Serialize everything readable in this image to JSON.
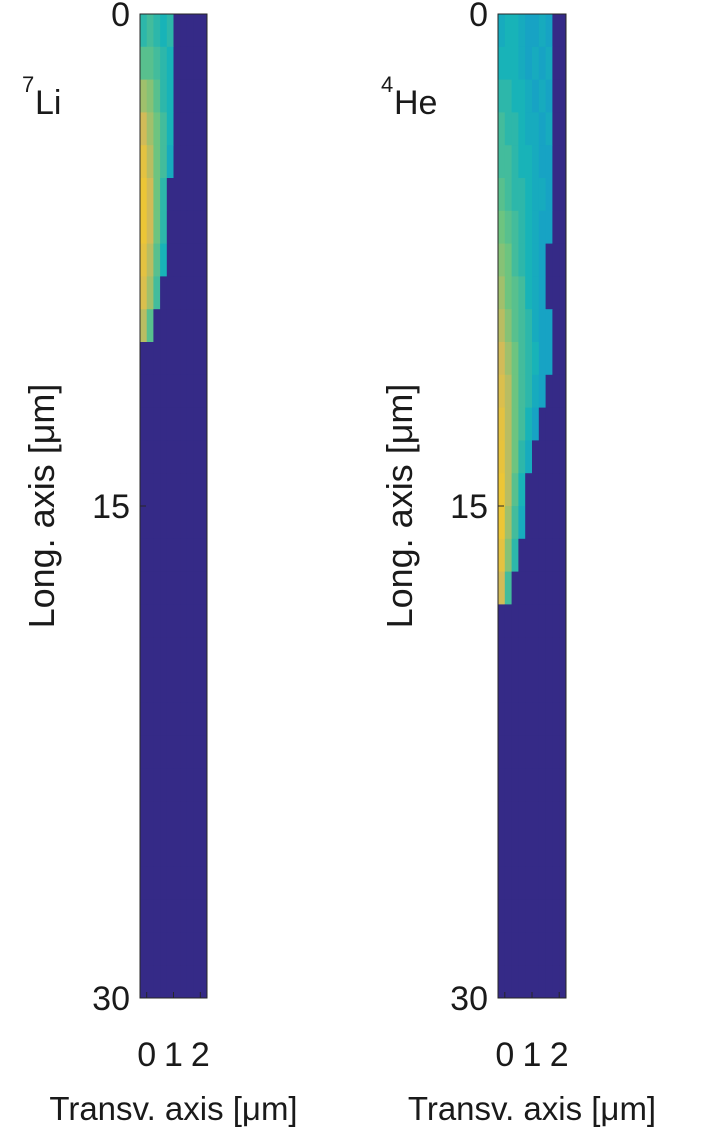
{
  "chart_data": [
    {
      "type": "heatmap",
      "title_sup": "7",
      "title": "Li",
      "xlabel": "Transv. axis [μm]",
      "ylabel": "Long. axis [μm]",
      "xlim": [
        -0.25,
        2.25
      ],
      "ylim": [
        0,
        30
      ],
      "xticks": [
        0,
        1,
        2
      ],
      "yticks": [
        0,
        15,
        30
      ],
      "y_reversed": true,
      "clim": [
        0,
        1
      ],
      "colormap": [
        "#352a87",
        "#1592d0",
        "#18b3b8",
        "#6dc480",
        "#d2bb58",
        "#f5c92a"
      ],
      "x": [
        -0.125,
        0.125,
        0.375,
        0.625,
        0.875,
        1.125,
        1.375,
        1.625,
        1.875,
        2.125
      ],
      "y": [
        0.5,
        1.5,
        2.5,
        3.5,
        4.5,
        5.5,
        6.5,
        7.5,
        8.5,
        9.5,
        10.5,
        11.5,
        12.5,
        13.5,
        14.5,
        15.5,
        16.5,
        17.5,
        18.5,
        19.5,
        20.5,
        21.5,
        22.5,
        23.5,
        24.5,
        25.5,
        26.5,
        27.5,
        28.5,
        29.5
      ],
      "z": [
        [
          0.45,
          0.5,
          0.45,
          0.4,
          0.45,
          0,
          0,
          0,
          0,
          0
        ],
        [
          0.55,
          0.55,
          0.5,
          0.45,
          0.4,
          0,
          0,
          0,
          0,
          0
        ],
        [
          0.7,
          0.65,
          0.55,
          0.45,
          0.4,
          0,
          0,
          0,
          0,
          0
        ],
        [
          0.8,
          0.7,
          0.6,
          0.5,
          0.4,
          0,
          0,
          0,
          0,
          0
        ],
        [
          0.9,
          0.75,
          0.6,
          0.5,
          0.35,
          0,
          0,
          0,
          0,
          0
        ],
        [
          0.95,
          0.8,
          0.6,
          0.45,
          0,
          0,
          0,
          0,
          0,
          0
        ],
        [
          0.95,
          0.8,
          0.6,
          0.45,
          0,
          0,
          0,
          0,
          0,
          0
        ],
        [
          0.9,
          0.75,
          0.55,
          0.4,
          0,
          0,
          0,
          0,
          0,
          0
        ],
        [
          0.85,
          0.7,
          0.5,
          0,
          0,
          0,
          0,
          0,
          0,
          0
        ],
        [
          0.75,
          0.55,
          0,
          0,
          0,
          0,
          0,
          0,
          0,
          0
        ],
        [
          0,
          0,
          0,
          0,
          0,
          0,
          0,
          0,
          0,
          0
        ],
        [
          0,
          0,
          0,
          0,
          0,
          0,
          0,
          0,
          0,
          0
        ],
        [
          0,
          0,
          0,
          0,
          0,
          0,
          0,
          0,
          0,
          0
        ],
        [
          0,
          0,
          0,
          0,
          0,
          0,
          0,
          0,
          0,
          0
        ],
        [
          0,
          0,
          0,
          0,
          0,
          0,
          0,
          0,
          0,
          0
        ],
        [
          0,
          0,
          0,
          0,
          0,
          0,
          0,
          0,
          0,
          0
        ],
        [
          0,
          0,
          0,
          0,
          0,
          0,
          0,
          0,
          0,
          0
        ],
        [
          0,
          0,
          0,
          0,
          0,
          0,
          0,
          0,
          0,
          0
        ],
        [
          0,
          0,
          0,
          0,
          0,
          0,
          0,
          0,
          0,
          0
        ],
        [
          0,
          0,
          0,
          0,
          0,
          0,
          0,
          0,
          0,
          0
        ],
        [
          0,
          0,
          0,
          0,
          0,
          0,
          0,
          0,
          0,
          0
        ],
        [
          0,
          0,
          0,
          0,
          0,
          0,
          0,
          0,
          0,
          0
        ],
        [
          0,
          0,
          0,
          0,
          0,
          0,
          0,
          0,
          0,
          0
        ],
        [
          0,
          0,
          0,
          0,
          0,
          0,
          0,
          0,
          0,
          0
        ],
        [
          0,
          0,
          0,
          0,
          0,
          0,
          0,
          0,
          0,
          0
        ],
        [
          0,
          0,
          0,
          0,
          0,
          0,
          0,
          0,
          0,
          0
        ],
        [
          0,
          0,
          0,
          0,
          0,
          0,
          0,
          0,
          0,
          0
        ],
        [
          0,
          0,
          0,
          0,
          0,
          0,
          0,
          0,
          0,
          0
        ],
        [
          0,
          0,
          0,
          0,
          0,
          0,
          0,
          0,
          0,
          0
        ],
        [
          0,
          0,
          0,
          0,
          0,
          0,
          0,
          0,
          0,
          0
        ]
      ]
    },
    {
      "type": "heatmap",
      "title_sup": "4",
      "title": "He",
      "xlabel": "Transv. axis [μm]",
      "ylabel": "Long. axis [μm]",
      "xlim": [
        -0.25,
        2.25
      ],
      "ylim": [
        0,
        30
      ],
      "xticks": [
        0,
        1,
        2
      ],
      "yticks": [
        0,
        15,
        30
      ],
      "y_reversed": true,
      "clim": [
        0,
        1
      ],
      "colormap": [
        "#352a87",
        "#1592d0",
        "#18b3b8",
        "#6dc480",
        "#d2bb58",
        "#f5c92a"
      ],
      "x": [
        -0.125,
        0.125,
        0.375,
        0.625,
        0.875,
        1.125,
        1.375,
        1.625,
        1.875,
        2.125
      ],
      "y": [
        0.5,
        1.5,
        2.5,
        3.5,
        4.5,
        5.5,
        6.5,
        7.5,
        8.5,
        9.5,
        10.5,
        11.5,
        12.5,
        13.5,
        14.5,
        15.5,
        16.5,
        17.5,
        18.5,
        19.5,
        20.5,
        21.5,
        22.5,
        23.5,
        24.5,
        25.5,
        26.5,
        27.5,
        28.5,
        29.5
      ],
      "z": [
        [
          0.35,
          0.4,
          0.4,
          0.35,
          0.3,
          0.3,
          0.35,
          0.3,
          0,
          0
        ],
        [
          0.4,
          0.4,
          0.4,
          0.35,
          0.3,
          0.35,
          0.3,
          0.35,
          0,
          0
        ],
        [
          0.45,
          0.45,
          0.4,
          0.4,
          0.35,
          0.3,
          0.35,
          0.3,
          0,
          0
        ],
        [
          0.5,
          0.45,
          0.45,
          0.4,
          0.35,
          0.35,
          0.3,
          0.35,
          0,
          0
        ],
        [
          0.5,
          0.5,
          0.45,
          0.4,
          0.4,
          0.35,
          0.3,
          0.3,
          0,
          0
        ],
        [
          0.55,
          0.5,
          0.45,
          0.45,
          0.4,
          0.35,
          0.35,
          0.3,
          0,
          0
        ],
        [
          0.6,
          0.55,
          0.5,
          0.45,
          0.4,
          0.35,
          0.3,
          0.3,
          0,
          0
        ],
        [
          0.65,
          0.6,
          0.5,
          0.45,
          0.4,
          0.35,
          0.3,
          0,
          0,
          0
        ],
        [
          0.7,
          0.6,
          0.55,
          0.5,
          0.4,
          0.35,
          0.3,
          0,
          0,
          0
        ],
        [
          0.75,
          0.65,
          0.55,
          0.5,
          0.45,
          0.35,
          0.3,
          0.3,
          0,
          0
        ],
        [
          0.8,
          0.7,
          0.6,
          0.5,
          0.45,
          0.4,
          0.3,
          0.3,
          0,
          0
        ],
        [
          0.85,
          0.75,
          0.6,
          0.5,
          0.45,
          0.35,
          0.3,
          0,
          0,
          0
        ],
        [
          0.9,
          0.75,
          0.6,
          0.5,
          0.4,
          0.3,
          0,
          0,
          0,
          0
        ],
        [
          0.92,
          0.75,
          0.6,
          0.45,
          0.35,
          0,
          0,
          0,
          0,
          0
        ],
        [
          0.95,
          0.75,
          0.55,
          0.4,
          0,
          0,
          0,
          0,
          0,
          0
        ],
        [
          0.95,
          0.7,
          0.5,
          0.35,
          0,
          0,
          0,
          0,
          0,
          0
        ],
        [
          0.9,
          0.65,
          0.45,
          0,
          0,
          0,
          0,
          0,
          0,
          0
        ],
        [
          0.8,
          0.5,
          0,
          0,
          0,
          0,
          0,
          0,
          0,
          0
        ],
        [
          0,
          0,
          0,
          0,
          0,
          0,
          0,
          0,
          0,
          0
        ],
        [
          0,
          0,
          0,
          0,
          0,
          0,
          0,
          0,
          0,
          0
        ],
        [
          0,
          0,
          0,
          0,
          0,
          0,
          0,
          0,
          0,
          0
        ],
        [
          0,
          0,
          0,
          0,
          0,
          0,
          0,
          0,
          0,
          0
        ],
        [
          0,
          0,
          0,
          0,
          0,
          0,
          0,
          0,
          0,
          0
        ],
        [
          0,
          0,
          0,
          0,
          0,
          0,
          0,
          0,
          0,
          0
        ],
        [
          0,
          0,
          0,
          0,
          0,
          0,
          0,
          0,
          0,
          0
        ],
        [
          0,
          0,
          0,
          0,
          0,
          0,
          0,
          0,
          0,
          0
        ],
        [
          0,
          0,
          0,
          0,
          0,
          0,
          0,
          0,
          0,
          0
        ],
        [
          0,
          0,
          0,
          0,
          0,
          0,
          0,
          0,
          0,
          0
        ],
        [
          0,
          0,
          0,
          0,
          0,
          0,
          0,
          0,
          0,
          0
        ],
        [
          0,
          0,
          0,
          0,
          0,
          0,
          0,
          0,
          0,
          0
        ]
      ]
    }
  ]
}
